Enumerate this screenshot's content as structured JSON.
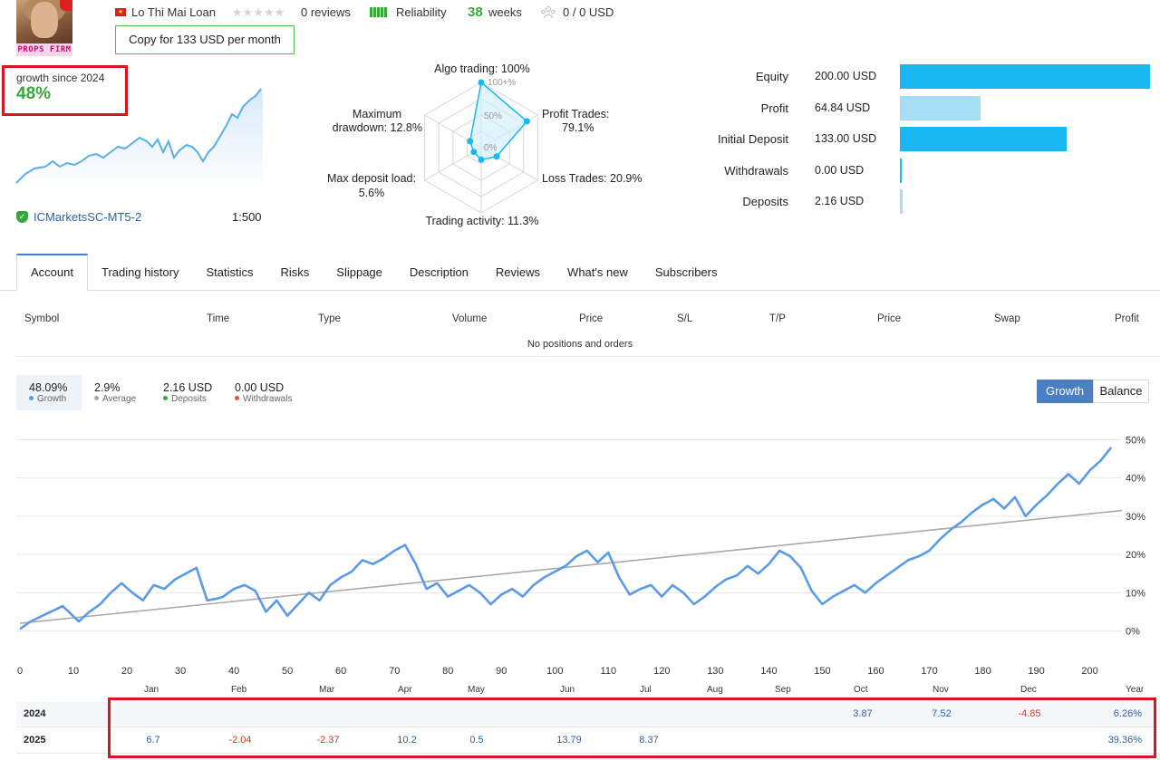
{
  "header": {
    "avatar_text": "PROPS FIRM",
    "author": "Lo Thi Mai Loan",
    "stars": "★★★★★",
    "reviews": "0 reviews",
    "reliability": "Reliability",
    "weeks_value": "38",
    "weeks_label": "weeks",
    "subscribers": "0 / 0 USD",
    "copy_button": "Copy for 133 USD per month"
  },
  "growth": {
    "label": "growth since 2024",
    "value": "48%",
    "broker": "ICMarketsSC-MT5-2",
    "leverage": "1:500"
  },
  "radar": {
    "algo": "Algo trading: 100%",
    "profit_trades_1": "Profit Trades:",
    "profit_trades_2": "79.1%",
    "loss_trades": "Loss Trades: 20.9%",
    "activity": "Trading activity: 11.3%",
    "deposit_load_1": "Max deposit load:",
    "deposit_load_2": "5.6%",
    "drawdown_1": "Maximum",
    "drawdown_2": "drawdown: 12.8%",
    "tick_100": "100+%",
    "tick_50": "50%",
    "tick_0": "0%",
    "values": [
      100,
      79.1,
      20.9,
      11.3,
      5.6,
      12.8
    ]
  },
  "finance": {
    "rows": [
      {
        "label": "Equity",
        "value": "200.00 USD",
        "amount": 200.0,
        "color": "#1ab8f0"
      },
      {
        "label": "Profit",
        "value": "64.84 USD",
        "amount": 64.84,
        "color": "#a6def6"
      },
      {
        "label": "Initial Deposit",
        "value": "133.00 USD",
        "amount": 133.0,
        "color": "#1ab8f0"
      },
      {
        "label": "Withdrawals",
        "value": "0.00 USD",
        "amount": 0.0,
        "color": "#1ab8f0"
      },
      {
        "label": "Deposits",
        "value": "2.16 USD",
        "amount": 2.16,
        "color": "#a6def6"
      }
    ]
  },
  "tabs": [
    "Account",
    "Trading history",
    "Statistics",
    "Risks",
    "Slippage",
    "Description",
    "Reviews",
    "What's new",
    "Subscribers"
  ],
  "positions": {
    "columns": [
      "Symbol",
      "Time",
      "Type",
      "Volume",
      "Price",
      "S/L",
      "T/P",
      "Price",
      "Swap",
      "Profit"
    ],
    "empty": "No positions and orders"
  },
  "stats": {
    "growth_value": "48.09%",
    "growth_label": "Growth",
    "average_value": "2.9%",
    "average_label": "Average",
    "deposits_value": "2.16 USD",
    "deposits_label": "Deposits",
    "withdrawals_value": "0.00 USD",
    "withdrawals_label": "Withdrawals"
  },
  "chart_toggle": {
    "growth": "Growth",
    "balance": "Balance"
  },
  "chart_data": {
    "type": "line",
    "x_ticks": [
      0,
      10,
      20,
      30,
      40,
      50,
      60,
      70,
      80,
      90,
      100,
      110,
      120,
      130,
      140,
      150,
      160,
      170,
      180,
      190,
      200
    ],
    "y_ticks": [
      "0%",
      "10%",
      "20%",
      "30%",
      "40%",
      "50%"
    ],
    "xlim": [
      0,
      206
    ],
    "ylim": [
      -2,
      52
    ],
    "series": [
      {
        "color": "#5b9be6",
        "x": [
          0,
          2,
          5,
          8,
          11,
          13,
          15,
          17,
          19,
          21,
          23,
          25,
          27,
          29,
          31,
          33,
          35,
          37,
          38,
          40,
          42,
          44,
          46,
          48,
          50,
          52,
          54,
          56,
          58,
          60,
          62,
          64,
          66,
          68,
          70,
          72,
          74,
          76,
          78,
          80,
          82,
          84,
          86,
          88,
          90,
          92,
          94,
          96,
          98,
          100,
          102,
          104,
          106,
          108,
          110,
          112,
          114,
          116,
          118,
          120,
          122,
          124,
          126,
          128,
          130,
          132,
          134,
          136,
          138,
          140,
          142,
          144,
          146,
          148,
          150,
          152,
          154,
          156,
          158,
          160,
          162,
          164,
          166,
          168,
          170,
          172,
          174,
          176,
          178,
          180,
          182,
          184,
          186,
          188,
          190,
          192,
          194,
          196,
          198,
          200,
          202,
          204
        ],
        "y": [
          0.5,
          2.5,
          4.5,
          6.5,
          2.5,
          5.0,
          7.0,
          10.0,
          12.5,
          10.0,
          8.0,
          12.0,
          11.0,
          13.5,
          15.0,
          16.5,
          8.0,
          8.5,
          9.0,
          11.0,
          12.0,
          10.5,
          5.0,
          8.0,
          4.0,
          7.0,
          10.0,
          8.0,
          12.0,
          14.0,
          15.5,
          18.5,
          17.5,
          19.0,
          21.0,
          22.5,
          17.5,
          11.0,
          12.5,
          9.0,
          10.5,
          12.0,
          10.0,
          7.0,
          9.5,
          11.0,
          9.0,
          12.0,
          14.0,
          15.5,
          17.0,
          19.5,
          21.0,
          18.0,
          20.5,
          14.0,
          9.5,
          11.0,
          12.0,
          9.0,
          12.0,
          10.0,
          7.0,
          9.0,
          11.5,
          13.5,
          14.5,
          17.0,
          15.0,
          17.5,
          21.0,
          19.5,
          16.5,
          10.5,
          7.0,
          9.0,
          10.5,
          12.0,
          10.0,
          12.5,
          14.5,
          16.5,
          18.5,
          19.5,
          21.0,
          24.0,
          26.5,
          28.5,
          31.0,
          33.0,
          34.5,
          32.0,
          35.0,
          30.0,
          33.0,
          35.5,
          38.5,
          41.0,
          38.5,
          42.0,
          44.5,
          48.0
        ]
      },
      {
        "color": "#aaaaaa",
        "x": [
          0,
          206
        ],
        "y": [
          2.0,
          31.5
        ]
      }
    ]
  },
  "monthly": {
    "months": [
      "Jan",
      "Feb",
      "Mar",
      "Apr",
      "May",
      "Jun",
      "Jul",
      "Aug",
      "Sep",
      "Oct",
      "Nov",
      "Dec",
      "Year"
    ],
    "rows": [
      {
        "year": "2024",
        "cells": [
          "",
          "",
          "",
          "",
          "",
          "",
          "",
          "",
          "",
          "3.87",
          "7.52",
          "-4.85",
          "6.26%"
        ]
      },
      {
        "year": "2025",
        "cells": [
          "6.7",
          "-2.04",
          "-2.37",
          "10.2",
          "0.5",
          "13.79",
          "8.37",
          "",
          "",
          "",
          "",
          "",
          "39.36%"
        ]
      }
    ]
  }
}
